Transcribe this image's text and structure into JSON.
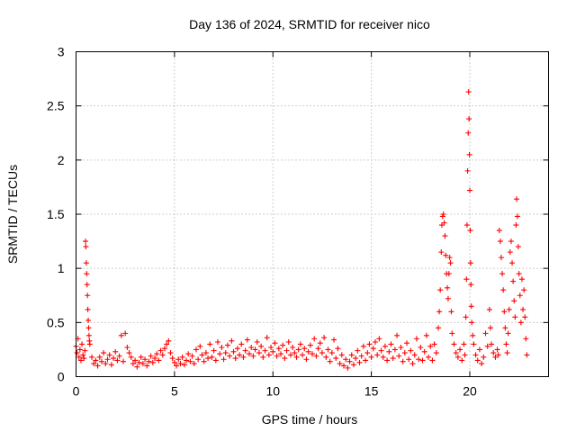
{
  "chart_data": {
    "type": "scatter",
    "title": "Day 136 of 2024, SRMTID for receiver nico",
    "xlabel": "GPS time / hours",
    "ylabel": "SRMTID / TECUs",
    "xlim": [
      0,
      24
    ],
    "ylim": [
      0,
      3
    ],
    "x_ticks": [
      0,
      5,
      10,
      15,
      20
    ],
    "y_ticks": [
      0,
      0.5,
      1,
      1.5,
      2,
      2.5,
      3
    ],
    "x_tick_labels": [
      "0",
      "5",
      "10",
      "15",
      "20"
    ],
    "y_tick_labels": [
      "0",
      "0.5",
      "1",
      "1.5",
      "2",
      "2.5",
      "3"
    ],
    "grid": true,
    "marker": "plus",
    "series": [
      {
        "color": "#ff0000",
        "points": [
          [
            0.0,
            0.28
          ],
          [
            0.05,
            0.22
          ],
          [
            0.1,
            0.35
          ],
          [
            0.15,
            0.18
          ],
          [
            0.2,
            0.25
          ],
          [
            0.25,
            0.15
          ],
          [
            0.3,
            0.3
          ],
          [
            0.35,
            0.2
          ],
          [
            0.4,
            0.17
          ],
          [
            0.45,
            0.24
          ],
          [
            0.48,
            1.25
          ],
          [
            0.5,
            1.2
          ],
          [
            0.52,
            1.05
          ],
          [
            0.54,
            0.95
          ],
          [
            0.56,
            0.85
          ],
          [
            0.58,
            0.75
          ],
          [
            0.6,
            0.62
          ],
          [
            0.62,
            0.52
          ],
          [
            0.64,
            0.45
          ],
          [
            0.66,
            0.38
          ],
          [
            0.68,
            0.33
          ],
          [
            0.7,
            0.3
          ],
          [
            0.8,
            0.18
          ],
          [
            0.9,
            0.12
          ],
          [
            1.0,
            0.15
          ],
          [
            1.1,
            0.1
          ],
          [
            1.2,
            0.18
          ],
          [
            1.3,
            0.14
          ],
          [
            1.4,
            0.22
          ],
          [
            1.5,
            0.12
          ],
          [
            1.6,
            0.16
          ],
          [
            1.7,
            0.2
          ],
          [
            1.8,
            0.11
          ],
          [
            1.9,
            0.17
          ],
          [
            2.0,
            0.23
          ],
          [
            2.1,
            0.15
          ],
          [
            2.2,
            0.19
          ],
          [
            2.3,
            0.38
          ],
          [
            2.4,
            0.14
          ],
          [
            2.5,
            0.4
          ],
          [
            2.6,
            0.27
          ],
          [
            2.7,
            0.22
          ],
          [
            2.8,
            0.18
          ],
          [
            2.9,
            0.12
          ],
          [
            3.0,
            0.15
          ],
          [
            3.1,
            0.09
          ],
          [
            3.2,
            0.13
          ],
          [
            3.3,
            0.18
          ],
          [
            3.4,
            0.12
          ],
          [
            3.5,
            0.16
          ],
          [
            3.6,
            0.1
          ],
          [
            3.7,
            0.14
          ],
          [
            3.8,
            0.19
          ],
          [
            3.9,
            0.13
          ],
          [
            4.0,
            0.17
          ],
          [
            4.1,
            0.21
          ],
          [
            4.2,
            0.15
          ],
          [
            4.3,
            0.24
          ],
          [
            4.4,
            0.2
          ],
          [
            4.5,
            0.26
          ],
          [
            4.6,
            0.3
          ],
          [
            4.7,
            0.33
          ],
          [
            4.8,
            0.22
          ],
          [
            4.9,
            0.17
          ],
          [
            5.0,
            0.13
          ],
          [
            5.1,
            0.1
          ],
          [
            5.2,
            0.16
          ],
          [
            5.3,
            0.12
          ],
          [
            5.4,
            0.18
          ],
          [
            5.5,
            0.11
          ],
          [
            5.6,
            0.15
          ],
          [
            5.7,
            0.21
          ],
          [
            5.8,
            0.14
          ],
          [
            5.9,
            0.19
          ],
          [
            6.0,
            0.12
          ],
          [
            6.1,
            0.25
          ],
          [
            6.2,
            0.16
          ],
          [
            6.3,
            0.28
          ],
          [
            6.4,
            0.2
          ],
          [
            6.5,
            0.14
          ],
          [
            6.6,
            0.22
          ],
          [
            6.7,
            0.17
          ],
          [
            6.8,
            0.3
          ],
          [
            6.9,
            0.18
          ],
          [
            7.0,
            0.24
          ],
          [
            7.1,
            0.15
          ],
          [
            7.2,
            0.32
          ],
          [
            7.3,
            0.21
          ],
          [
            7.4,
            0.27
          ],
          [
            7.5,
            0.16
          ],
          [
            7.6,
            0.22
          ],
          [
            7.7,
            0.29
          ],
          [
            7.8,
            0.19
          ],
          [
            7.9,
            0.33
          ],
          [
            8.0,
            0.23
          ],
          [
            8.1,
            0.17
          ],
          [
            8.2,
            0.26
          ],
          [
            8.3,
            0.2
          ],
          [
            8.4,
            0.3
          ],
          [
            8.5,
            0.18
          ],
          [
            8.6,
            0.24
          ],
          [
            8.7,
            0.34
          ],
          [
            8.8,
            0.21
          ],
          [
            8.9,
            0.27
          ],
          [
            9.0,
            0.19
          ],
          [
            9.1,
            0.25
          ],
          [
            9.2,
            0.32
          ],
          [
            9.3,
            0.22
          ],
          [
            9.4,
            0.28
          ],
          [
            9.5,
            0.18
          ],
          [
            9.6,
            0.24
          ],
          [
            9.7,
            0.36
          ],
          [
            9.8,
            0.2
          ],
          [
            9.9,
            0.27
          ],
          [
            10.0,
            0.23
          ],
          [
            10.1,
            0.31
          ],
          [
            10.2,
            0.19
          ],
          [
            10.3,
            0.26
          ],
          [
            10.4,
            0.21
          ],
          [
            10.5,
            0.29
          ],
          [
            10.6,
            0.17
          ],
          [
            10.7,
            0.24
          ],
          [
            10.8,
            0.32
          ],
          [
            10.9,
            0.2
          ],
          [
            11.0,
            0.27
          ],
          [
            11.1,
            0.22
          ],
          [
            11.2,
            0.18
          ],
          [
            11.3,
            0.25
          ],
          [
            11.4,
            0.3
          ],
          [
            11.5,
            0.2
          ],
          [
            11.6,
            0.26
          ],
          [
            11.7,
            0.16
          ],
          [
            11.8,
            0.23
          ],
          [
            11.9,
            0.29
          ],
          [
            12.0,
            0.21
          ],
          [
            12.1,
            0.35
          ],
          [
            12.2,
            0.19
          ],
          [
            12.3,
            0.26
          ],
          [
            12.4,
            0.31
          ],
          [
            12.5,
            0.22
          ],
          [
            12.6,
            0.36
          ],
          [
            12.7,
            0.18
          ],
          [
            12.8,
            0.25
          ],
          [
            12.9,
            0.14
          ],
          [
            13.0,
            0.22
          ],
          [
            13.1,
            0.34
          ],
          [
            13.2,
            0.17
          ],
          [
            13.3,
            0.26
          ],
          [
            13.4,
            0.12
          ],
          [
            13.5,
            0.2
          ],
          [
            13.6,
            0.1
          ],
          [
            13.7,
            0.16
          ],
          [
            13.8,
            0.08
          ],
          [
            13.9,
            0.14
          ],
          [
            14.0,
            0.2
          ],
          [
            14.1,
            0.11
          ],
          [
            14.2,
            0.17
          ],
          [
            14.3,
            0.24
          ],
          [
            14.4,
            0.13
          ],
          [
            14.5,
            0.19
          ],
          [
            14.6,
            0.28
          ],
          [
            14.7,
            0.15
          ],
          [
            14.8,
            0.22
          ],
          [
            14.9,
            0.3
          ],
          [
            15.0,
            0.18
          ],
          [
            15.1,
            0.26
          ],
          [
            15.2,
            0.32
          ],
          [
            15.3,
            0.2
          ],
          [
            15.4,
            0.35
          ],
          [
            15.5,
            0.24
          ],
          [
            15.6,
            0.18
          ],
          [
            15.7,
            0.28
          ],
          [
            15.8,
            0.15
          ],
          [
            15.9,
            0.23
          ],
          [
            16.0,
            0.3
          ],
          [
            16.1,
            0.17
          ],
          [
            16.2,
            0.25
          ],
          [
            16.3,
            0.38
          ],
          [
            16.4,
            0.19
          ],
          [
            16.5,
            0.27
          ],
          [
            16.6,
            0.14
          ],
          [
            16.7,
            0.22
          ],
          [
            16.8,
            0.31
          ],
          [
            16.9,
            0.16
          ],
          [
            17.0,
            0.24
          ],
          [
            17.1,
            0.12
          ],
          [
            17.2,
            0.2
          ],
          [
            17.3,
            0.35
          ],
          [
            17.4,
            0.16
          ],
          [
            17.5,
            0.27
          ],
          [
            17.6,
            0.15
          ],
          [
            17.7,
            0.23
          ],
          [
            17.8,
            0.38
          ],
          [
            17.9,
            0.18
          ],
          [
            18.0,
            0.28
          ],
          [
            18.1,
            0.15
          ],
          [
            18.2,
            0.3
          ],
          [
            18.3,
            0.22
          ],
          [
            18.4,
            0.45
          ],
          [
            18.45,
            0.6
          ],
          [
            18.5,
            0.8
          ],
          [
            18.55,
            1.15
          ],
          [
            18.58,
            1.4
          ],
          [
            18.62,
            1.48
          ],
          [
            18.66,
            1.5
          ],
          [
            18.7,
            1.42
          ],
          [
            18.74,
            1.3
          ],
          [
            18.78,
            1.12
          ],
          [
            18.82,
            0.95
          ],
          [
            18.86,
            0.82
          ],
          [
            18.9,
            0.72
          ],
          [
            18.94,
            0.95
          ],
          [
            18.98,
            1.1
          ],
          [
            19.02,
            1.05
          ],
          [
            19.06,
            0.6
          ],
          [
            19.1,
            0.4
          ],
          [
            19.2,
            0.3
          ],
          [
            19.3,
            0.22
          ],
          [
            19.4,
            0.18
          ],
          [
            19.5,
            0.25
          ],
          [
            19.6,
            0.15
          ],
          [
            19.7,
            0.3
          ],
          [
            19.75,
            0.2
          ],
          [
            19.8,
            0.55
          ],
          [
            19.83,
            0.9
          ],
          [
            19.86,
            1.4
          ],
          [
            19.89,
            1.9
          ],
          [
            19.92,
            2.25
          ],
          [
            19.94,
            2.63
          ],
          [
            19.96,
            2.38
          ],
          [
            19.98,
            2.05
          ],
          [
            20.0,
            1.72
          ],
          [
            20.02,
            1.35
          ],
          [
            20.04,
            1.05
          ],
          [
            20.06,
            0.85
          ],
          [
            20.08,
            0.65
          ],
          [
            20.1,
            0.5
          ],
          [
            20.15,
            0.38
          ],
          [
            20.2,
            0.3
          ],
          [
            20.3,
            0.2
          ],
          [
            20.4,
            0.15
          ],
          [
            20.5,
            0.25
          ],
          [
            20.6,
            0.12
          ],
          [
            20.7,
            0.18
          ],
          [
            20.8,
            0.4
          ],
          [
            20.9,
            0.28
          ],
          [
            21.0,
            0.62
          ],
          [
            21.05,
            0.45
          ],
          [
            21.1,
            0.3
          ],
          [
            21.2,
            0.22
          ],
          [
            21.3,
            0.18
          ],
          [
            21.4,
            0.25
          ],
          [
            21.45,
            0.2
          ],
          [
            21.5,
            1.35
          ],
          [
            21.55,
            1.25
          ],
          [
            21.6,
            1.1
          ],
          [
            21.65,
            0.95
          ],
          [
            21.7,
            0.8
          ],
          [
            21.75,
            0.6
          ],
          [
            21.8,
            0.45
          ],
          [
            21.85,
            0.3
          ],
          [
            21.9,
            0.22
          ],
          [
            21.95,
            0.4
          ],
          [
            22.0,
            0.62
          ],
          [
            22.05,
            1.15
          ],
          [
            22.1,
            1.25
          ],
          [
            22.15,
            1.05
          ],
          [
            22.2,
            0.88
          ],
          [
            22.25,
            0.7
          ],
          [
            22.3,
            0.55
          ],
          [
            22.35,
            1.4
          ],
          [
            22.38,
            1.64
          ],
          [
            22.42,
            1.48
          ],
          [
            22.46,
            1.2
          ],
          [
            22.5,
            0.95
          ],
          [
            22.55,
            0.75
          ],
          [
            22.6,
            0.5
          ],
          [
            22.65,
            0.9
          ],
          [
            22.7,
            0.62
          ],
          [
            22.75,
            0.8
          ],
          [
            22.8,
            0.55
          ],
          [
            22.85,
            0.35
          ],
          [
            22.9,
            0.2
          ]
        ]
      }
    ]
  }
}
